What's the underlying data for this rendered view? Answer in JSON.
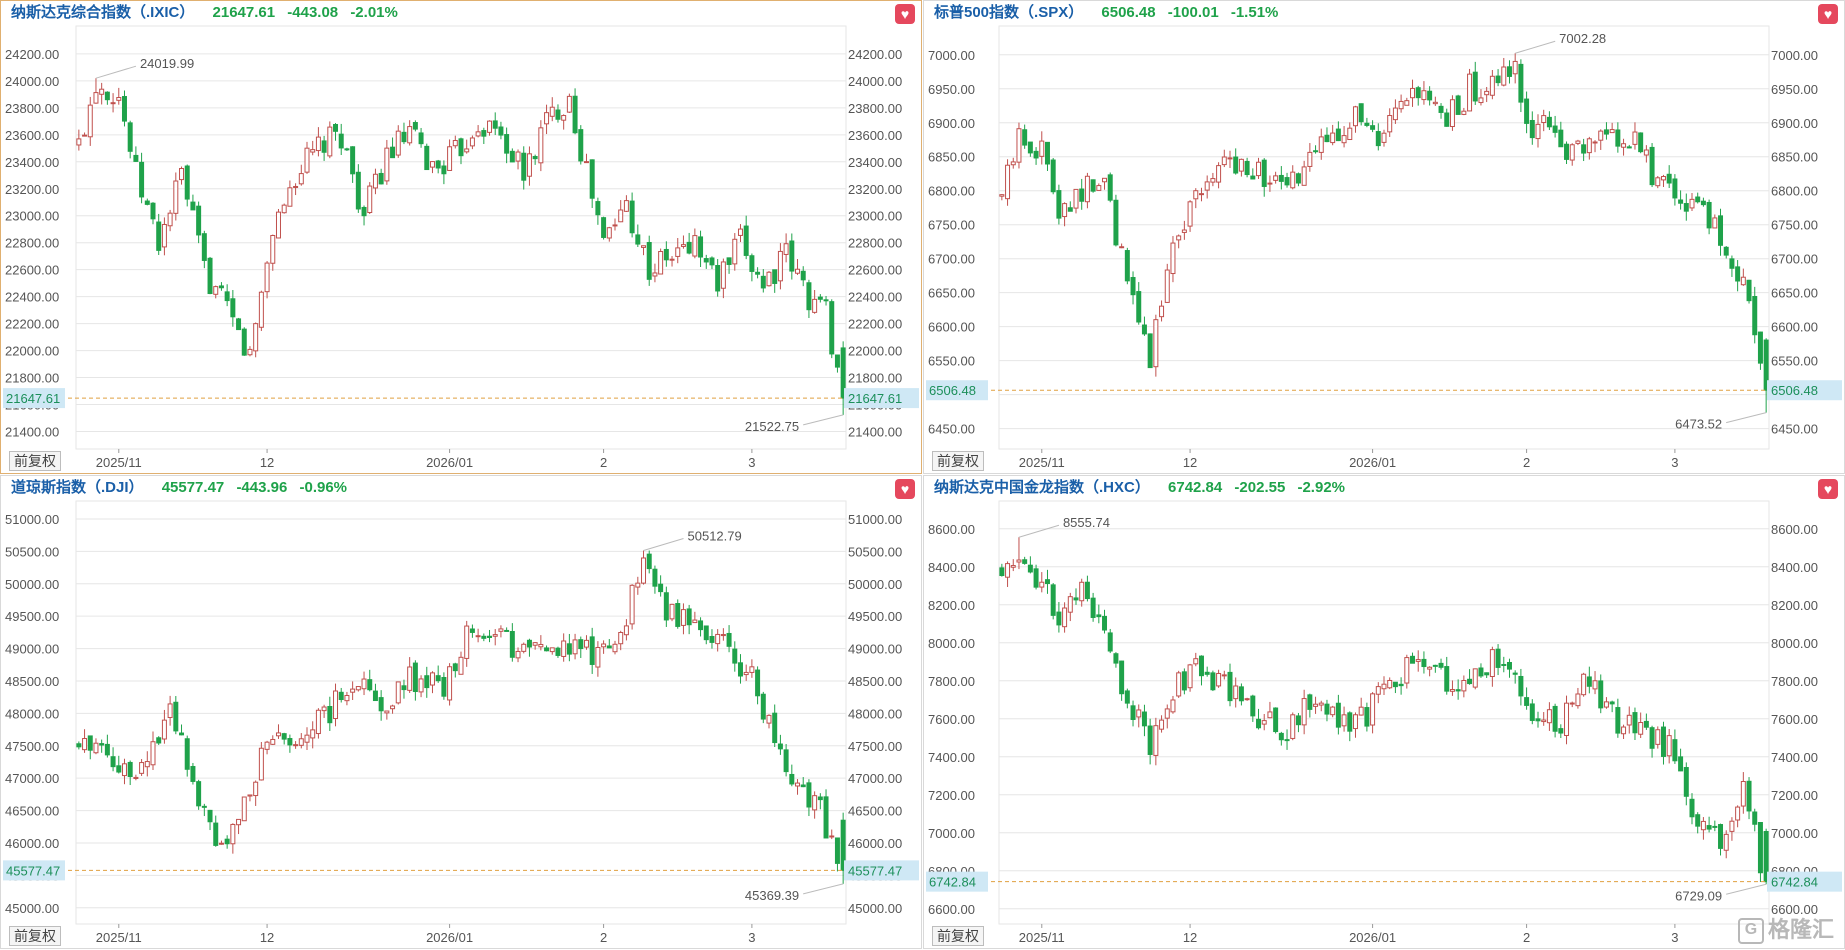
{
  "colors": {
    "up": "#c0504d",
    "down": "#1fa24a",
    "grid": "#e6e6e6",
    "axis": "#555555",
    "lastline": "#e0a040"
  },
  "toolbar": {
    "fq_label": "前复权",
    "fav_icon": "heart-icon"
  },
  "watermark": {
    "text": "格隆汇",
    "logo": "G"
  },
  "charts": [
    {
      "type": "candlestick",
      "name": "纳斯达克综合指数（.IXIC）",
      "last": "21647.61",
      "change": "-443.08",
      "pct": "-2.01%",
      "yticks": [
        24200,
        24000,
        23800,
        23600,
        23400,
        23200,
        23000,
        22800,
        22600,
        22400,
        22200,
        22000,
        21800,
        21600,
        21400
      ],
      "ylim": [
        21270,
        24370
      ],
      "xlabels": [
        "2025/11",
        "12",
        "2026/01",
        "2",
        "3"
      ],
      "xlabel_idx": [
        7,
        33,
        65,
        92,
        118
      ],
      "hi_label": "24019.99",
      "lo_label": "21522.75",
      "last_label": "21647.61",
      "lastValue": 21647.61,
      "start": 23520,
      "end": 21647.61,
      "max": 24019.99,
      "min": 21522.75,
      "maxIdx": 3,
      "minIdx": 134,
      "active": true,
      "wp": [
        [
          0,
          23520
        ],
        [
          3,
          24000
        ],
        [
          7,
          23900
        ],
        [
          10,
          23300
        ],
        [
          14,
          22800
        ],
        [
          18,
          23300
        ],
        [
          22,
          22600
        ],
        [
          27,
          22200
        ],
        [
          30,
          21950
        ],
        [
          34,
          22900
        ],
        [
          38,
          23300
        ],
        [
          42,
          23500
        ],
        [
          46,
          23600
        ],
        [
          50,
          23000
        ],
        [
          54,
          23450
        ],
        [
          58,
          23600
        ],
        [
          62,
          23350
        ],
        [
          66,
          23450
        ],
        [
          70,
          23700
        ],
        [
          74,
          23600
        ],
        [
          78,
          23300
        ],
        [
          82,
          23700
        ],
        [
          86,
          23900
        ],
        [
          88,
          23500
        ],
        [
          92,
          22800
        ],
        [
          96,
          23100
        ],
        [
          100,
          22600
        ],
        [
          104,
          22700
        ],
        [
          108,
          22800
        ],
        [
          112,
          22500
        ],
        [
          116,
          22800
        ],
        [
          120,
          22500
        ],
        [
          124,
          22700
        ],
        [
          128,
          22400
        ],
        [
          131,
          22300
        ],
        [
          134,
          21647.61
        ]
      ]
    },
    {
      "type": "candlestick",
      "name": "标普500指数（.SPX）",
      "last": "6506.48",
      "change": "-100.01",
      "pct": "-1.51%",
      "yticks": [
        7000,
        6950,
        6900,
        6850,
        6800,
        6750,
        6700,
        6650,
        6600,
        6550,
        6500,
        6450
      ],
      "ylim": [
        6420,
        7035
      ],
      "xlabels": [
        "2025/11",
        "12",
        "2026/01",
        "2",
        "3"
      ],
      "xlabel_idx": [
        7,
        33,
        65,
        92,
        118
      ],
      "hi_label": "7002.28",
      "lo_label": "6473.52",
      "last_label": "6506.48",
      "lastValue": 6506.48,
      "start": 6790,
      "end": 6506.48,
      "max": 7002.28,
      "min": 6473.52,
      "maxIdx": 90,
      "minIdx": 134,
      "active": false,
      "wp": [
        [
          0,
          6790
        ],
        [
          3,
          6880
        ],
        [
          7,
          6860
        ],
        [
          10,
          6780
        ],
        [
          14,
          6800
        ],
        [
          18,
          6810
        ],
        [
          22,
          6660
        ],
        [
          26,
          6560
        ],
        [
          30,
          6720
        ],
        [
          34,
          6800
        ],
        [
          38,
          6830
        ],
        [
          42,
          6850
        ],
        [
          46,
          6820
        ],
        [
          50,
          6800
        ],
        [
          54,
          6840
        ],
        [
          58,
          6890
        ],
        [
          62,
          6910
        ],
        [
          66,
          6860
        ],
        [
          70,
          6920
        ],
        [
          74,
          6940
        ],
        [
          78,
          6900
        ],
        [
          82,
          6950
        ],
        [
          86,
          6950
        ],
        [
          90,
          6980
        ],
        [
          93,
          6880
        ],
        [
          96,
          6900
        ],
        [
          100,
          6850
        ],
        [
          104,
          6870
        ],
        [
          108,
          6880
        ],
        [
          112,
          6860
        ],
        [
          116,
          6800
        ],
        [
          120,
          6780
        ],
        [
          124,
          6760
        ],
        [
          128,
          6700
        ],
        [
          131,
          6640
        ],
        [
          134,
          6506.48
        ]
      ]
    },
    {
      "type": "candlestick",
      "name": "道琼斯指数（.DJI）",
      "last": "45577.47",
      "change": "-443.96",
      "pct": "-0.96%",
      "yticks": [
        51000,
        50500,
        50000,
        49500,
        49000,
        48500,
        48000,
        47500,
        47000,
        46500,
        46000,
        45500,
        45000
      ],
      "ylim": [
        44750,
        51200
      ],
      "xlabels": [
        "2025/11",
        "12",
        "2026/01",
        "2",
        "3"
      ],
      "xlabel_idx": [
        7,
        33,
        65,
        92,
        118
      ],
      "hi_label": "50512.79",
      "lo_label": "45369.39",
      "last_label": "45577.47",
      "lastValue": 45577.47,
      "start": 47500,
      "end": 45577.47,
      "max": 50512.79,
      "min": 45369.39,
      "maxIdx": 99,
      "minIdx": 134,
      "active": false,
      "wp": [
        [
          0,
          47500
        ],
        [
          4,
          47600
        ],
        [
          8,
          47100
        ],
        [
          12,
          47300
        ],
        [
          16,
          48200
        ],
        [
          20,
          47000
        ],
        [
          24,
          46100
        ],
        [
          28,
          46200
        ],
        [
          32,
          47400
        ],
        [
          36,
          47600
        ],
        [
          40,
          47700
        ],
        [
          44,
          48000
        ],
        [
          48,
          48600
        ],
        [
          52,
          48100
        ],
        [
          56,
          48400
        ],
        [
          60,
          48600
        ],
        [
          64,
          48300
        ],
        [
          68,
          49200
        ],
        [
          72,
          49300
        ],
        [
          76,
          49000
        ],
        [
          80,
          49200
        ],
        [
          84,
          49000
        ],
        [
          88,
          48900
        ],
        [
          92,
          49000
        ],
        [
          96,
          49500
        ],
        [
          99,
          50400
        ],
        [
          102,
          49700
        ],
        [
          106,
          49500
        ],
        [
          110,
          49300
        ],
        [
          114,
          49000
        ],
        [
          118,
          48600
        ],
        [
          122,
          47500
        ],
        [
          126,
          46800
        ],
        [
          130,
          46500
        ],
        [
          134,
          45577.47
        ]
      ]
    },
    {
      "type": "candlestick",
      "name": "纳斯达克中国金龙指数（.HXC）",
      "last": "6742.84",
      "change": "-202.55",
      "pct": "-2.92%",
      "yticks": [
        8600,
        8400,
        8200,
        8000,
        7800,
        7600,
        7400,
        7200,
        7000,
        6800,
        6600
      ],
      "ylim": [
        6520,
        8720
      ],
      "xlabels": [
        "2025/11",
        "12",
        "2026/01",
        "2",
        "3"
      ],
      "xlabel_idx": [
        7,
        33,
        65,
        92,
        118
      ],
      "hi_label": "8555.74",
      "lo_label": "6729.09",
      "last_label": "6742.84",
      "lastValue": 6742.84,
      "start": 8380,
      "end": 6742.84,
      "max": 8555.74,
      "min": 6729.09,
      "maxIdx": 3,
      "minIdx": 134,
      "active": false,
      "wp": [
        [
          0,
          8380
        ],
        [
          3,
          8500
        ],
        [
          7,
          8300
        ],
        [
          10,
          8150
        ],
        [
          14,
          8250
        ],
        [
          18,
          8050
        ],
        [
          22,
          7700
        ],
        [
          26,
          7450
        ],
        [
          30,
          7750
        ],
        [
          34,
          7850
        ],
        [
          38,
          7800
        ],
        [
          42,
          7700
        ],
        [
          46,
          7600
        ],
        [
          50,
          7550
        ],
        [
          54,
          7700
        ],
        [
          58,
          7650
        ],
        [
          62,
          7550
        ],
        [
          66,
          7700
        ],
        [
          70,
          7850
        ],
        [
          74,
          7950
        ],
        [
          78,
          7750
        ],
        [
          82,
          7800
        ],
        [
          86,
          7900
        ],
        [
          90,
          7850
        ],
        [
          94,
          7600
        ],
        [
          98,
          7550
        ],
        [
          102,
          7850
        ],
        [
          106,
          7650
        ],
        [
          110,
          7550
        ],
        [
          114,
          7500
        ],
        [
          118,
          7450
        ],
        [
          122,
          7050
        ],
        [
          126,
          6950
        ],
        [
          130,
          7200
        ],
        [
          134,
          6742.84
        ]
      ]
    }
  ]
}
